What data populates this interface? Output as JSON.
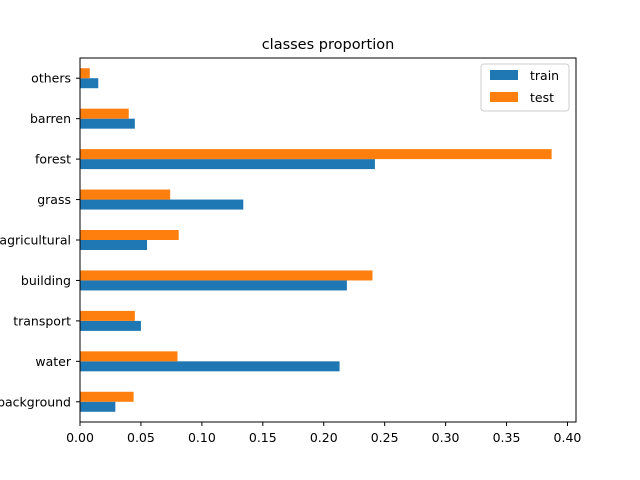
{
  "chart_data": {
    "type": "bar",
    "orientation": "horizontal",
    "title": "classes proportion",
    "xlabel": "",
    "ylabel": "",
    "categories": [
      "background",
      "water",
      "transport",
      "building",
      "agricultural",
      "grass",
      "forest",
      "barren",
      "others"
    ],
    "series": [
      {
        "name": "train",
        "color": "#1f77b4",
        "values": [
          0.029,
          0.213,
          0.05,
          0.219,
          0.055,
          0.134,
          0.242,
          0.045,
          0.015
        ]
      },
      {
        "name": "test",
        "color": "#ff7f0e",
        "values": [
          0.044,
          0.08,
          0.045,
          0.24,
          0.081,
          0.074,
          0.387,
          0.04,
          0.008
        ]
      }
    ],
    "xlim": [
      0,
      0.407
    ],
    "xticks": [
      "0.00",
      "0.05",
      "0.10",
      "0.15",
      "0.20",
      "0.25",
      "0.30",
      "0.35",
      "0.40"
    ],
    "xtick_values": [
      0,
      0.05,
      0.1,
      0.15,
      0.2,
      0.25,
      0.3,
      0.35,
      0.4
    ],
    "grid": false,
    "legend_position": "top-right"
  }
}
